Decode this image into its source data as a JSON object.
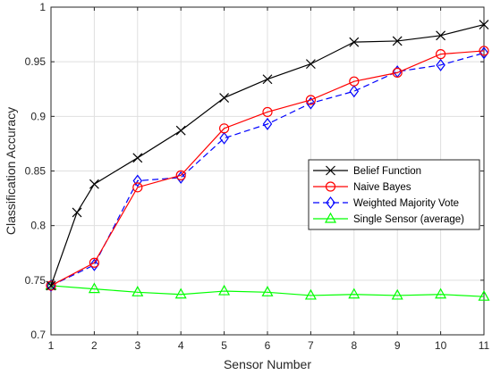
{
  "chart_data": {
    "type": "line",
    "title": "",
    "xlabel": "Sensor Number",
    "ylabel": "Classification Accuracy",
    "xlim": [
      1,
      11
    ],
    "ylim": [
      0.7,
      1
    ],
    "xticks": [
      1,
      2,
      3,
      4,
      5,
      6,
      7,
      8,
      9,
      10,
      11
    ],
    "yticks": [
      0.7,
      0.75,
      0.8,
      0.85,
      0.9,
      0.95,
      1
    ],
    "ytick_labels": [
      "0.7",
      "0.75",
      "0.8",
      "0.85",
      "0.9",
      "0.95",
      "1"
    ],
    "grid": true,
    "legend_position": "center-right",
    "series": [
      {
        "name": "Belief Function",
        "color": "#000000",
        "line_style": "solid",
        "marker": "x",
        "x": [
          1,
          1.6,
          2,
          3,
          4,
          5,
          6,
          7,
          8,
          9,
          10,
          11
        ],
        "values": [
          0.745,
          0.812,
          0.838,
          0.862,
          0.887,
          0.917,
          0.934,
          0.948,
          0.968,
          0.969,
          0.974,
          0.984
        ]
      },
      {
        "name": "Naive Bayes",
        "color": "#ff0000",
        "line_style": "solid",
        "marker": "circle",
        "x": [
          1,
          2,
          3,
          4,
          5,
          6,
          7,
          8,
          9,
          10,
          11
        ],
        "values": [
          0.745,
          0.766,
          0.835,
          0.846,
          0.889,
          0.904,
          0.915,
          0.932,
          0.94,
          0.957,
          0.96
        ]
      },
      {
        "name": "Weighted Majority Vote",
        "color": "#0000ff",
        "line_style": "dashed",
        "marker": "diamond",
        "x": [
          1,
          2,
          3,
          4,
          5,
          6,
          7,
          8,
          9,
          10,
          11
        ],
        "values": [
          0.745,
          0.764,
          0.841,
          0.844,
          0.88,
          0.893,
          0.912,
          0.923,
          0.941,
          0.947,
          0.958
        ]
      },
      {
        "name": "Single Sensor (average)",
        "color": "#00ff00",
        "line_style": "solid",
        "marker": "triangle",
        "x": [
          1,
          2,
          3,
          4,
          5,
          6,
          7,
          8,
          9,
          10,
          11
        ],
        "values": [
          0.745,
          0.742,
          0.739,
          0.737,
          0.74,
          0.739,
          0.736,
          0.737,
          0.736,
          0.737,
          0.735
        ]
      }
    ]
  }
}
